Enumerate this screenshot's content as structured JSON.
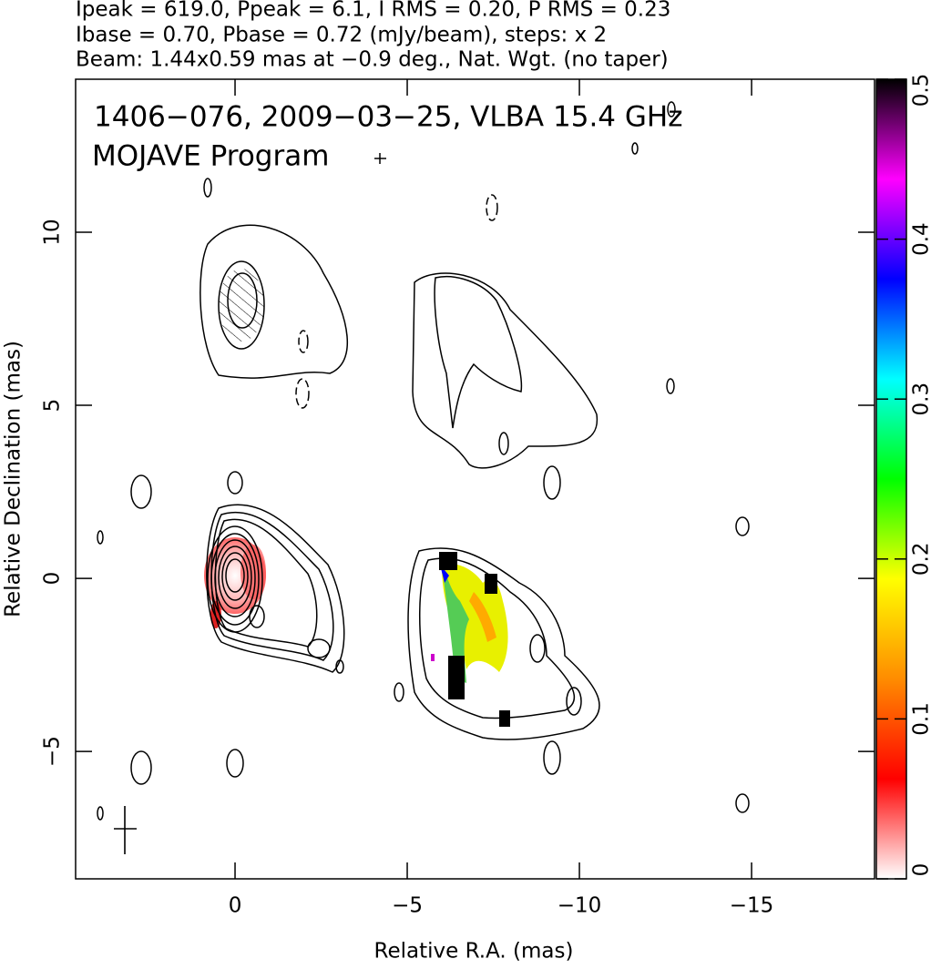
{
  "chart_data": {
    "type": "contour",
    "header": [
      "Ipeak = 619.0, Ppeak = 6.1, I RMS = 0.20, P RMS = 0.23",
      "Ibase = 0.70, Pbase = 0.72 (mJy/beam), steps: x 2",
      "Beam: 1.44x0.59 mas at −0.9 deg., Nat. Wgt. (no taper)"
    ],
    "title": "1406−076, 2009−03−25, VLBA 15.4 GHz",
    "subtitle": "MOJAVE Program",
    "xlabel": "Relative R.A. (mas)",
    "ylabel": "Relative Declination (mas)",
    "xlim": [
      4.63,
      -18.57
    ],
    "ylim": [
      -8.68,
      14.42
    ],
    "xticks": [
      0,
      {
        "value": -5,
        "label": "−5"
      },
      {
        "value": -10,
        "label": "−10"
      },
      {
        "value": -15,
        "label": "−15"
      }
    ],
    "yticks": [
      10,
      5,
      0,
      {
        "value": -5,
        "label": "−5"
      }
    ],
    "colorbar": {
      "lim": [
        0,
        0.5
      ],
      "ticks": [
        0,
        0.1,
        0.2,
        0.3,
        0.4,
        0.5
      ],
      "colors": [
        "#ffffff",
        "#ff0000",
        "#ff8c00",
        "#ffff00",
        "#00ff00",
        "#00ffff",
        "#0000ff",
        "#ff00ff",
        "#000000"
      ]
    }
  }
}
